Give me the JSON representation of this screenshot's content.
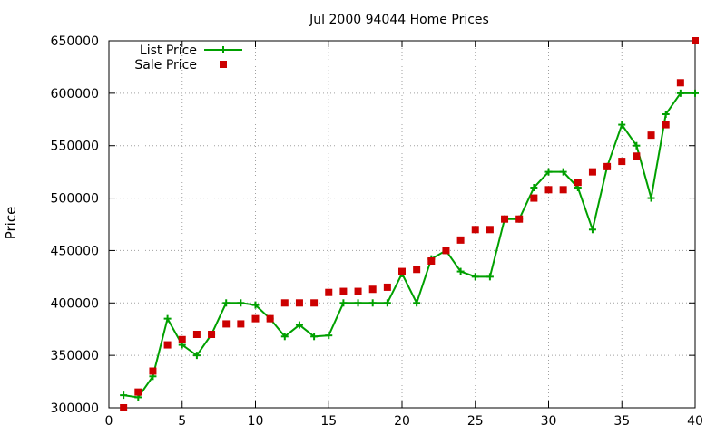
{
  "chart_data": {
    "type": "line",
    "title": "Jul 2000 94044 Home Prices",
    "xlabel": "",
    "ylabel": "Price",
    "xlim": [
      0,
      40
    ],
    "ylim": [
      300000,
      650000
    ],
    "xticks": [
      "0",
      "5",
      "10",
      "15",
      "20",
      "25",
      "30",
      "35",
      "40"
    ],
    "yticks": [
      "300000",
      "350000",
      "400000",
      "450000",
      "500000",
      "550000",
      "600000",
      "650000"
    ],
    "grid": true,
    "legend_position": "top-left",
    "series": [
      {
        "name": "List Price",
        "style": "line-with-plus-markers",
        "color": "#00a000",
        "x": [
          1,
          2,
          3,
          4,
          5,
          6,
          7,
          8,
          9,
          10,
          11,
          12,
          13,
          14,
          15,
          16,
          17,
          18,
          19,
          20,
          21,
          22,
          23,
          24,
          25,
          26,
          27,
          28,
          29,
          30,
          31,
          32,
          33,
          34,
          35,
          36,
          37,
          38,
          39,
          40
        ],
        "y": [
          312000,
          310000,
          330000,
          385000,
          360000,
          350000,
          370000,
          400000,
          400000,
          398000,
          385000,
          368000,
          379000,
          368000,
          369000,
          400000,
          400000,
          400000,
          400000,
          428000,
          400000,
          442000,
          450000,
          430000,
          425000,
          425000,
          480000,
          480000,
          510000,
          525000,
          525000,
          510000,
          470000,
          530000,
          570000,
          550000,
          500000,
          580000,
          600000,
          600000
        ]
      },
      {
        "name": "Sale Price",
        "style": "square-markers",
        "color": "#cc0000",
        "x": [
          1,
          2,
          3,
          4,
          5,
          6,
          7,
          8,
          9,
          10,
          11,
          12,
          13,
          14,
          15,
          16,
          17,
          18,
          19,
          20,
          21,
          22,
          23,
          24,
          25,
          26,
          27,
          28,
          29,
          30,
          31,
          32,
          33,
          34,
          35,
          36,
          37,
          38,
          39,
          40
        ],
        "y": [
          300000,
          315000,
          335000,
          360000,
          365000,
          370000,
          370000,
          380000,
          380000,
          385000,
          385000,
          400000,
          400000,
          400000,
          410000,
          411000,
          411000,
          413000,
          415000,
          430000,
          432000,
          440000,
          450000,
          460000,
          470000,
          470000,
          480000,
          480000,
          500000,
          508000,
          508000,
          515000,
          525000,
          530000,
          535000,
          540000,
          560000,
          570000,
          610000,
          650000
        ]
      }
    ]
  }
}
